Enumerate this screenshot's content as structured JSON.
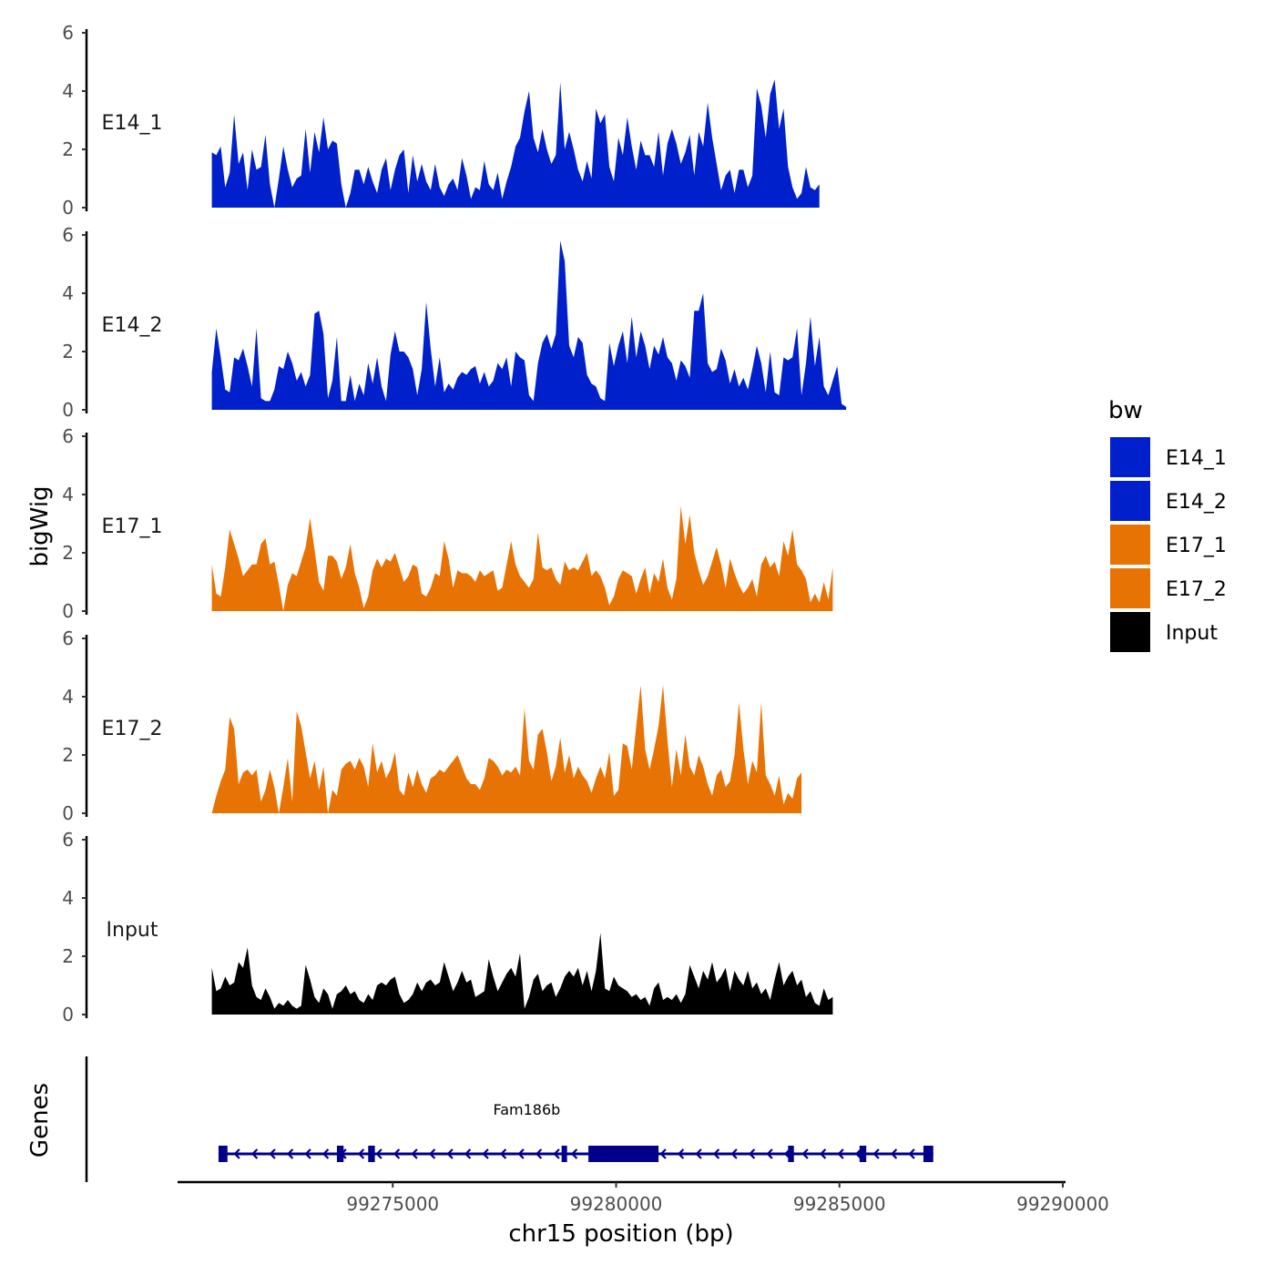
{
  "chart_data": {
    "type": "area",
    "title": "",
    "xlabel": "chr15 position (bp)",
    "ylabel": "bigWig",
    "genes_panel_label": "Genes",
    "xlim": [
      99270000,
      99290000
    ],
    "x_ticks": [
      99275000,
      99280000,
      99285000,
      99290000
    ],
    "x_tick_labels": [
      "99275000",
      "99280000",
      "99285000",
      "99290000"
    ],
    "ylim": [
      0,
      6
    ],
    "y_ticks": [
      0,
      2,
      4,
      6
    ],
    "y_tick_labels": [
      "0",
      "2",
      "4",
      "6"
    ],
    "x_start": 99270950,
    "x_step": 100,
    "legend": {
      "title": "bw",
      "position": "right",
      "entries": [
        {
          "label": "E14_1",
          "color": "#0020cc"
        },
        {
          "label": "E14_2",
          "color": "#0020cc"
        },
        {
          "label": "E17_1",
          "color": "#e87305"
        },
        {
          "label": "E17_2",
          "color": "#e87305"
        },
        {
          "label": "Input",
          "color": "#000000"
        }
      ]
    },
    "series": [
      {
        "name": "E14_1",
        "color": "#0020cc",
        "values": [
          1.9,
          1.8,
          2.1,
          0.7,
          1.2,
          3.2,
          1.5,
          1.9,
          0.6,
          2.0,
          1.3,
          1.4,
          2.5,
          0.8,
          0.0,
          1.0,
          2.1,
          1.3,
          0.7,
          1.0,
          1.1,
          2.7,
          1.2,
          2.6,
          1.9,
          3.1,
          2.0,
          2.3,
          2.2,
          0.8,
          0.0,
          0.5,
          1.3,
          1.3,
          0.8,
          1.4,
          0.9,
          0.5,
          1.3,
          1.7,
          0.6,
          1.3,
          1.8,
          2.0,
          0.5,
          1.8,
          0.9,
          1.5,
          0.9,
          0.6,
          1.5,
          0.7,
          0.4,
          0.8,
          1.0,
          0.6,
          1.7,
          1.1,
          0.3,
          0.7,
          0.6,
          1.6,
          0.8,
          0.6,
          1.2,
          0.3,
          0.9,
          1.4,
          2.1,
          2.4,
          3.3,
          4.0,
          2.4,
          1.9,
          2.7,
          2.0,
          1.5,
          1.8,
          4.3,
          2.0,
          2.6,
          2.0,
          1.3,
          0.9,
          1.6,
          1.0,
          3.4,
          2.9,
          3.2,
          1.4,
          0.9,
          2.4,
          1.8,
          3.1,
          2.1,
          1.3,
          2.3,
          1.8,
          1.8,
          1.4,
          2.6,
          1.1,
          2.2,
          2.7,
          2.2,
          1.5,
          1.9,
          2.5,
          1.1,
          2.6,
          2.1,
          3.6,
          2.4,
          1.5,
          0.6,
          1.1,
          1.3,
          0.5,
          1.3,
          1.3,
          0.7,
          1.1,
          4.1,
          3.5,
          2.4,
          3.9,
          4.4,
          2.7,
          3.4,
          1.4,
          0.7,
          0.3,
          0.5,
          1.4,
          0.7,
          0.6,
          0.8
        ]
      },
      {
        "name": "E14_2",
        "color": "#0020cc",
        "values": [
          1.3,
          2.8,
          1.8,
          0.7,
          0.6,
          1.8,
          1.7,
          2.1,
          1.5,
          0.8,
          2.8,
          0.4,
          0.3,
          0.3,
          0.7,
          1.5,
          1.4,
          2.0,
          1.6,
          1.0,
          1.3,
          0.8,
          1.2,
          3.3,
          3.4,
          2.6,
          0.4,
          1.0,
          2.5,
          0.3,
          0.3,
          1.2,
          0.3,
          0.9,
          0.5,
          1.6,
          0.9,
          1.8,
          0.8,
          0.3,
          1.9,
          2.7,
          2.0,
          2.0,
          1.8,
          1.4,
          0.5,
          1.4,
          3.7,
          2.1,
          0.8,
          1.8,
          0.6,
          0.9,
          0.7,
          1.1,
          1.3,
          1.2,
          1.4,
          1.5,
          0.9,
          1.3,
          0.8,
          1.0,
          1.6,
          1.4,
          1.8,
          0.8,
          2.0,
          1.8,
          1.7,
          0.5,
          0.3,
          1.6,
          2.3,
          2.6,
          2.1,
          2.6,
          5.8,
          5.1,
          2.2,
          1.8,
          2.5,
          2.3,
          1.2,
          0.9,
          0.8,
          0.4,
          0.3,
          2.3,
          1.5,
          2.2,
          2.7,
          1.6,
          3.2,
          1.8,
          2.7,
          2.2,
          1.4,
          2.2,
          1.9,
          2.5,
          1.8,
          1.6,
          1.0,
          1.7,
          1.5,
          1.1,
          3.4,
          3.4,
          4.0,
          1.6,
          1.3,
          1.4,
          2.1,
          1.7,
          0.9,
          1.4,
          0.8,
          1.1,
          0.7,
          1.4,
          2.2,
          1.6,
          0.6,
          2.0,
          0.6,
          0.5,
          1.8,
          1.7,
          1.8,
          2.8,
          0.5,
          1.6,
          3.2,
          1.5,
          2.5,
          0.8,
          0.5,
          1.0,
          1.5,
          0.2,
          0.1
        ]
      },
      {
        "name": "E17_1",
        "color": "#e87305",
        "values": [
          1.6,
          0.6,
          0.5,
          1.5,
          2.8,
          2.3,
          1.8,
          1.2,
          1.4,
          1.6,
          1.6,
          2.3,
          2.5,
          1.6,
          1.7,
          0.9,
          0.0,
          0.9,
          1.3,
          1.2,
          1.7,
          2.2,
          3.2,
          2.1,
          1.0,
          0.7,
          1.9,
          1.9,
          1.7,
          1.1,
          1.5,
          2.3,
          1.3,
          0.8,
          0.1,
          0.5,
          1.4,
          1.8,
          1.5,
          1.8,
          1.7,
          2.0,
          1.5,
          1.0,
          1.2,
          1.6,
          1.5,
          0.6,
          0.5,
          0.8,
          1.3,
          1.2,
          2.4,
          1.8,
          0.8,
          1.4,
          1.3,
          1.3,
          1.2,
          1.0,
          1.4,
          1.2,
          1.3,
          1.4,
          0.7,
          0.8,
          1.6,
          2.4,
          1.6,
          1.2,
          1.0,
          0.8,
          1.1,
          2.7,
          1.5,
          1.4,
          1.5,
          1.1,
          0.9,
          1.7,
          1.4,
          1.5,
          1.4,
          1.7,
          2.0,
          1.2,
          1.4,
          1.2,
          0.8,
          0.2,
          0.5,
          1.1,
          1.4,
          1.3,
          1.2,
          0.6,
          1.1,
          1.5,
          0.6,
          1.3,
          1.0,
          1.8,
          0.8,
          0.4,
          1.1,
          3.6,
          2.3,
          3.3,
          2.0,
          1.4,
          0.9,
          1.2,
          1.7,
          2.2,
          1.6,
          0.8,
          1.8,
          1.3,
          0.9,
          0.6,
          0.8,
          1.1,
          0.5,
          1.6,
          1.9,
          1.5,
          1.7,
          1.2,
          2.4,
          1.9,
          2.8,
          1.6,
          1.4,
          1.1,
          0.3,
          0.6,
          0.3,
          1.0,
          0.4,
          1.5
        ]
      },
      {
        "name": "E17_2",
        "color": "#e87305",
        "values": [
          0.0,
          0.6,
          1.1,
          1.5,
          3.3,
          2.9,
          1.0,
          1.4,
          1.5,
          1.3,
          1.5,
          0.4,
          0.8,
          1.5,
          0.9,
          0.0,
          0.9,
          1.9,
          0.4,
          3.5,
          3.0,
          2.1,
          1.2,
          1.8,
          0.8,
          1.6,
          0.0,
          0.8,
          0.6,
          1.5,
          1.7,
          1.8,
          1.5,
          1.9,
          1.6,
          0.9,
          2.4,
          1.4,
          1.8,
          1.2,
          1.5,
          2.1,
          0.8,
          0.6,
          1.4,
          0.9,
          1.5,
          1.0,
          0.7,
          1.2,
          1.3,
          1.5,
          1.4,
          1.6,
          1.8,
          2.0,
          1.6,
          1.2,
          1.0,
          1.0,
          0.8,
          1.2,
          1.9,
          1.8,
          1.6,
          1.3,
          1.5,
          1.4,
          1.6,
          1.3,
          3.6,
          1.8,
          1.5,
          2.7,
          2.9,
          2.1,
          1.1,
          1.6,
          2.6,
          1.4,
          2.0,
          1.2,
          1.6,
          1.3,
          1.1,
          0.7,
          1.2,
          1.6,
          1.2,
          2.1,
          0.6,
          0.8,
          2.4,
          2.3,
          1.5,
          3.0,
          4.4,
          2.2,
          1.5,
          2.2,
          3.0,
          4.4,
          2.5,
          0.9,
          2.2,
          1.3,
          2.7,
          1.6,
          1.3,
          2.0,
          1.6,
          1.0,
          0.6,
          1.3,
          1.5,
          0.9,
          1.1,
          2.0,
          3.8,
          2.2,
          1.0,
          1.8,
          1.4,
          3.8,
          1.3,
          1.0,
          0.6,
          1.3,
          0.3,
          0.7,
          0.5,
          1.2,
          1.4
        ]
      },
      {
        "name": "Input",
        "color": "#000000",
        "values": [
          1.6,
          0.8,
          0.9,
          1.3,
          1.0,
          1.1,
          1.8,
          1.6,
          2.3,
          1.0,
          0.6,
          0.5,
          0.9,
          0.6,
          0.2,
          0.4,
          0.3,
          0.5,
          0.3,
          0.2,
          0.3,
          1.7,
          1.2,
          0.6,
          0.4,
          0.9,
          0.7,
          0.2,
          0.7,
          0.8,
          1.0,
          0.7,
          0.8,
          0.5,
          0.4,
          0.7,
          0.5,
          1.0,
          1.1,
          1.0,
          1.2,
          1.3,
          0.7,
          0.4,
          0.5,
          0.7,
          1.1,
          0.8,
          1.1,
          1.2,
          1.0,
          1.1,
          1.8,
          1.3,
          0.8,
          1.1,
          1.5,
          1.1,
          1.2,
          0.6,
          0.7,
          0.8,
          1.9,
          1.3,
          0.8,
          1.1,
          1.4,
          1.6,
          1.3,
          2.1,
          0.2,
          0.6,
          1.2,
          1.4,
          0.8,
          1.0,
          1.1,
          0.6,
          0.9,
          1.3,
          1.5,
          1.3,
          1.6,
          1.0,
          1.5,
          0.8,
          1.5,
          2.8,
          0.9,
          0.8,
          1.3,
          1.0,
          0.9,
          0.8,
          0.6,
          0.7,
          0.5,
          0.6,
          0.3,
          0.9,
          1.1,
          0.5,
          0.6,
          0.5,
          0.7,
          0.4,
          0.7,
          1.7,
          1.3,
          0.9,
          1.5,
          1.2,
          1.8,
          1.1,
          1.3,
          1.6,
          0.8,
          1.5,
          1.2,
          1.0,
          1.5,
          0.9,
          1.1,
          0.7,
          0.9,
          0.5,
          1.2,
          1.8,
          1.0,
          1.3,
          1.5,
          1.0,
          1.2,
          0.6,
          0.8,
          0.4,
          0.3,
          0.9,
          0.5,
          0.6
        ]
      }
    ],
    "gene": {
      "name": "Fam186b",
      "strand": "-",
      "color": "#00008b",
      "start": 99271100,
      "end": 99287100,
      "exons": [
        [
          99271100,
          99271300
        ],
        [
          99273750,
          99273900
        ],
        [
          99274450,
          99274600
        ],
        [
          99278780,
          99278900
        ],
        [
          99279380,
          99280950
        ],
        [
          99283850,
          99283980
        ],
        [
          99285450,
          99285600
        ],
        [
          99286880,
          99287100
        ]
      ]
    }
  }
}
